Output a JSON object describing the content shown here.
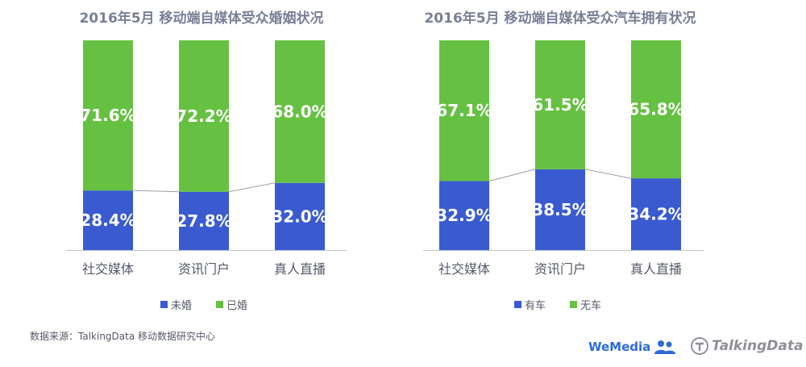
{
  "chart_data": [
    {
      "type": "bar",
      "stacked": true,
      "title": "2016年5月 移动端自媒体受众婚姻状况",
      "categories": [
        "社交媒体",
        "资讯门户",
        "真人直播"
      ],
      "series": [
        {
          "name": "未婚",
          "values": [
            28.4,
            27.8,
            32.0
          ],
          "labels": [
            "28.4%",
            "27.8%",
            "32.0%"
          ],
          "color": "#3a5bd0"
        },
        {
          "name": "已婚",
          "values": [
            71.6,
            72.2,
            68.0
          ],
          "labels": [
            "71.6%",
            "72.2%",
            "68.0%"
          ],
          "color": "#66c142"
        }
      ],
      "ylim": [
        0,
        100
      ],
      "legend": "bottom"
    },
    {
      "type": "bar",
      "stacked": true,
      "title": "2016年5月 移动端自媒体受众汽车拥有状况",
      "categories": [
        "社交媒体",
        "资讯门户",
        "真人直播"
      ],
      "series": [
        {
          "name": "有车",
          "values": [
            32.9,
            38.5,
            34.2
          ],
          "labels": [
            "32.9%",
            "38.5%",
            "34.2%"
          ],
          "color": "#3a5bd0"
        },
        {
          "name": "无车",
          "values": [
            67.1,
            61.5,
            65.8
          ],
          "labels": [
            "67.1%",
            "61.5%",
            "65.8%"
          ],
          "color": "#66c142"
        }
      ],
      "ylim": [
        0,
        100
      ],
      "legend": "bottom"
    }
  ],
  "source": "数据来源：TalkingData 移动数据研究中心",
  "logos": {
    "wemedia": "WeMedia",
    "talkingdata": "TalkingData"
  },
  "colors": {
    "title": "#7a7f96",
    "axis": "#bfc3cc",
    "connector": "#9aa0aa"
  }
}
